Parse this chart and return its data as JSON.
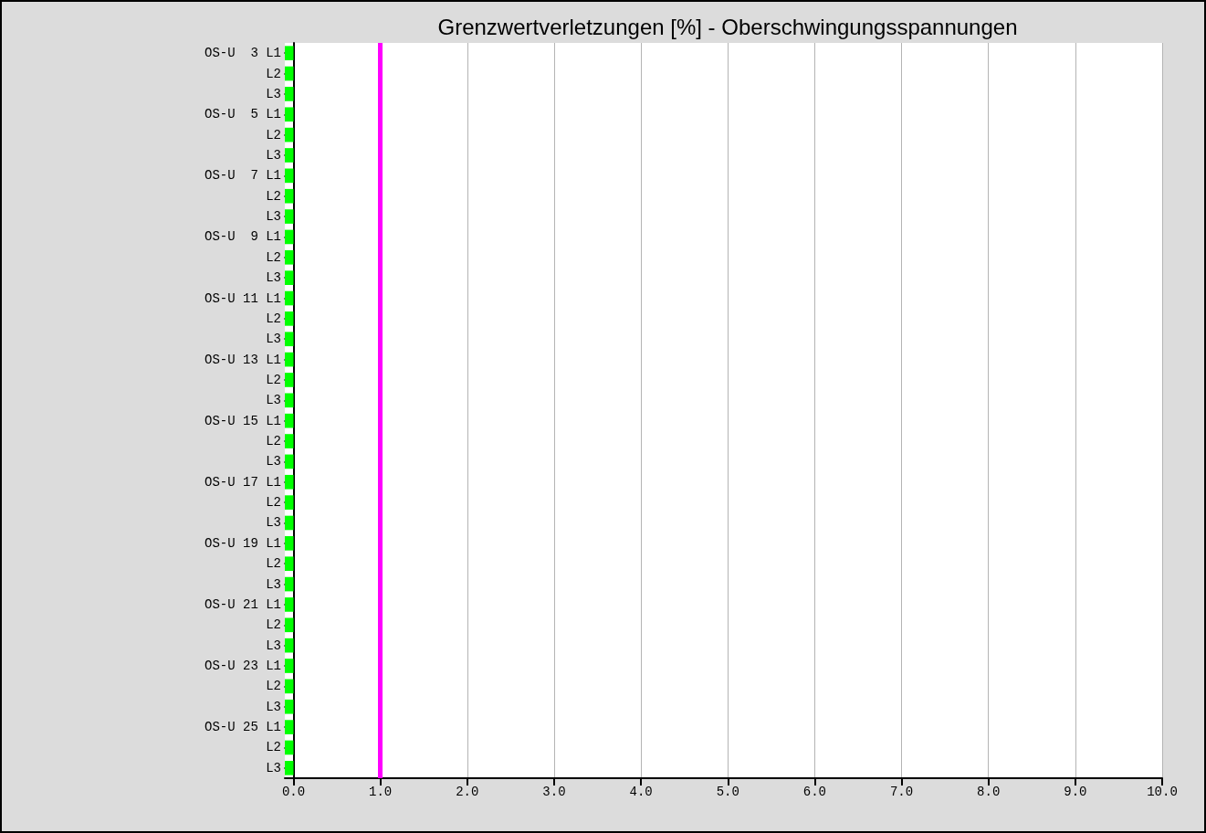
{
  "chart_data": {
    "type": "bar",
    "orientation": "horizontal",
    "title": "Grenzwertverletzungen [%] - Oberschwingungsspannungen",
    "categories": [
      "OS-U  3 L1",
      "L2",
      "L3",
      "OS-U  5 L1",
      "L2",
      "L3",
      "OS-U  7 L1",
      "L2",
      "L3",
      "OS-U  9 L1",
      "L2",
      "L3",
      "OS-U 11 L1",
      "L2",
      "L3",
      "OS-U 13 L1",
      "L2",
      "L3",
      "OS-U 15 L1",
      "L2",
      "L3",
      "OS-U 17 L1",
      "L2",
      "L3",
      "OS-U 19 L1",
      "L2",
      "L3",
      "OS-U 21 L1",
      "L2",
      "L3",
      "OS-U 23 L1",
      "L2",
      "L3",
      "OS-U 25 L1",
      "L2",
      "L3"
    ],
    "values": [
      0.1,
      0.1,
      0.1,
      0.1,
      0.1,
      0.1,
      0.1,
      0.1,
      0.1,
      0.1,
      0.1,
      0.1,
      0.1,
      0.1,
      0.1,
      0.1,
      0.1,
      0.1,
      0.1,
      0.1,
      0.1,
      0.1,
      0.1,
      0.1,
      0.1,
      0.1,
      0.1,
      0.1,
      0.1,
      0.1,
      0.1,
      0.1,
      0.1,
      0.1,
      0.1,
      0.1
    ],
    "base": [
      -0.1,
      -0.1,
      -0.1,
      -0.1,
      -0.1,
      -0.1,
      -0.1,
      -0.1,
      -0.1,
      -0.1,
      -0.1,
      -0.1,
      -0.1,
      -0.1,
      -0.1,
      -0.1,
      -0.1,
      -0.1,
      -0.1,
      -0.1,
      -0.1,
      -0.1,
      -0.1,
      -0.1,
      -0.1,
      -0.1,
      -0.1,
      -0.1,
      -0.1,
      -0.1,
      -0.1,
      -0.1,
      -0.1,
      -0.1,
      -0.1,
      -0.1
    ],
    "color": "#00ff00",
    "xlim": [
      -0.1,
      10
    ],
    "xticks": [
      {
        "value": 0,
        "label": "0.0"
      },
      {
        "value": 1,
        "label": "1.0"
      },
      {
        "value": 2,
        "label": "2.0"
      },
      {
        "value": 3,
        "label": "3.0"
      },
      {
        "value": 4,
        "label": "4.0"
      },
      {
        "value": 5,
        "label": "5.0"
      },
      {
        "value": 6,
        "label": "6.0"
      },
      {
        "value": 7,
        "label": "7.0"
      },
      {
        "value": 8,
        "label": "8.0"
      },
      {
        "value": 9,
        "label": "9.0"
      },
      {
        "value": 10,
        "label": "10.0"
      }
    ],
    "ref_lines": [
      {
        "axis": "x",
        "value": 1,
        "label": null,
        "color": "#ff00ff"
      }
    ],
    "grid": "x"
  }
}
